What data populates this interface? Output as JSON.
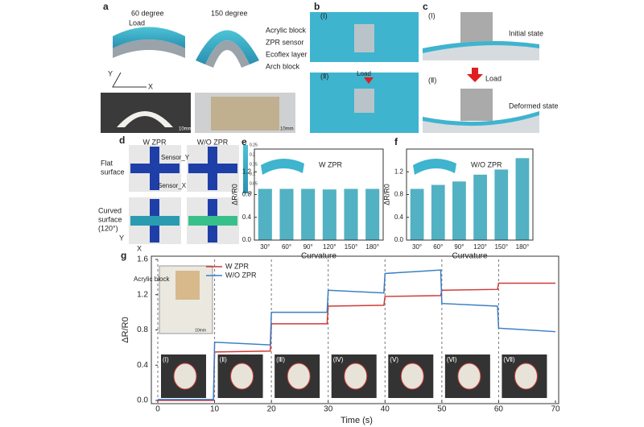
{
  "figure": {
    "panel_a": {
      "label": "a",
      "angle_1": "60 degree",
      "angle_2": "150 degree",
      "load": "Load",
      "layers": [
        "Acrylic block",
        "ZPR sensor",
        "Ecoflex layer",
        "Arch block"
      ],
      "axis_y": "Y",
      "axis_x": "X",
      "scale_1": "10mm",
      "scale_2": "10mm"
    },
    "panel_b": {
      "label": "b",
      "state_1": "(Ⅰ)",
      "state_2": "(Ⅱ)",
      "load": "Load"
    },
    "panel_c": {
      "label": "c",
      "state_1": "(Ⅰ)",
      "initial": "Initial state",
      "state_2": "(Ⅱ)",
      "load": "Load",
      "deformed": "Deformed state"
    },
    "panel_d": {
      "label": "d",
      "col_1": "W ZPR",
      "col_2": "W/O ZPR",
      "row_1": [
        "Flat",
        "surface"
      ],
      "row_2": [
        "Curved",
        "surface",
        "(120°)"
      ],
      "sensor_y": "Sensor_Y",
      "sensor_x": "Sensor_X",
      "axis_y": "Y",
      "axis_x": "X",
      "colorbar_lim": [
        0,
        0.25
      ],
      "colorbar_ticks": [
        0,
        0.05,
        0.1,
        0.15,
        0.2,
        0.25
      ]
    }
  },
  "chart_data": [
    {
      "type": "bar",
      "panel": "e",
      "annotation": "W ZPR",
      "x_label": "Curvature",
      "y_label": "ΔR/R0",
      "categories": [
        "30°",
        "60°",
        "90°",
        "120°",
        "150°",
        "180°"
      ],
      "values": [
        0.9,
        0.9,
        0.9,
        0.89,
        0.9,
        0.9
      ],
      "color": "#3fa9bd",
      "ylim": [
        0,
        1.6
      ],
      "yticks": [
        {
          "value": 0,
          "label": "0.0"
        },
        {
          "value": 0.4,
          "label": "0.4"
        },
        {
          "value": 0.8,
          "label": "0.8"
        },
        {
          "value": 1.2,
          "label": "1.2"
        }
      ]
    },
    {
      "type": "bar",
      "panel": "f",
      "annotation": "W/O ZPR",
      "x_label": "Curvature",
      "y_label": "ΔR/R0",
      "categories": [
        "30°",
        "60°",
        "90°",
        "120°",
        "150°",
        "180°"
      ],
      "values": [
        0.9,
        0.97,
        1.03,
        1.15,
        1.24,
        1.44
      ],
      "color": "#3fa9bd",
      "ylim": [
        0,
        1.6
      ],
      "yticks": [
        {
          "value": 0,
          "label": "0.0"
        },
        {
          "value": 0.4,
          "label": "0.4"
        },
        {
          "value": 0.8,
          "label": "0.8"
        },
        {
          "value": 1.2,
          "label": "1.2"
        }
      ]
    },
    {
      "type": "line",
      "panel": "g",
      "x_label": "Time (s)",
      "y_label": "ΔR/R0",
      "legend": "upper left",
      "inset_label": "Acrylic block",
      "inset_scale": "10mm",
      "stages": [
        "(Ⅰ)",
        "(Ⅱ)",
        "(Ⅲ)",
        "(Ⅳ)",
        "(Ⅴ)",
        "(Ⅵ)",
        "(Ⅶ)"
      ],
      "dividers": [
        10,
        20,
        30,
        40,
        50,
        60
      ],
      "xlim": [
        0,
        70
      ],
      "xticks": [
        0,
        10,
        20,
        30,
        40,
        50,
        60,
        70
      ],
      "ylim": [
        0,
        1.6
      ],
      "yticks": [
        {
          "value": 0,
          "label": "0.0"
        },
        {
          "value": 0.4,
          "label": "0.4"
        },
        {
          "value": 0.8,
          "label": "0.8"
        },
        {
          "value": 1.2,
          "label": "1.2"
        },
        {
          "value": 1.6,
          "label": "1.6"
        }
      ],
      "series": [
        {
          "name": "W ZPR",
          "color": "#d03a3a",
          "x": [
            0,
            9.8,
            10,
            19.8,
            20,
            29.8,
            30,
            39.8,
            40,
            49.8,
            50,
            59.8,
            60,
            70
          ],
          "values": [
            0,
            0,
            0.55,
            0.56,
            0.87,
            0.87,
            1.07,
            1.08,
            1.18,
            1.19,
            1.25,
            1.26,
            1.33,
            1.33
          ]
        },
        {
          "name": "W/O ZPR",
          "color": "#3b7fc4",
          "x": [
            0,
            9.8,
            10,
            19.8,
            20,
            29.8,
            30,
            39.8,
            40,
            49.8,
            50,
            59.8,
            60,
            70
          ],
          "values": [
            0.01,
            0.01,
            0.66,
            0.63,
            1.0,
            1.0,
            1.25,
            1.22,
            1.44,
            1.48,
            1.1,
            1.07,
            0.82,
            0.78
          ]
        }
      ]
    }
  ]
}
